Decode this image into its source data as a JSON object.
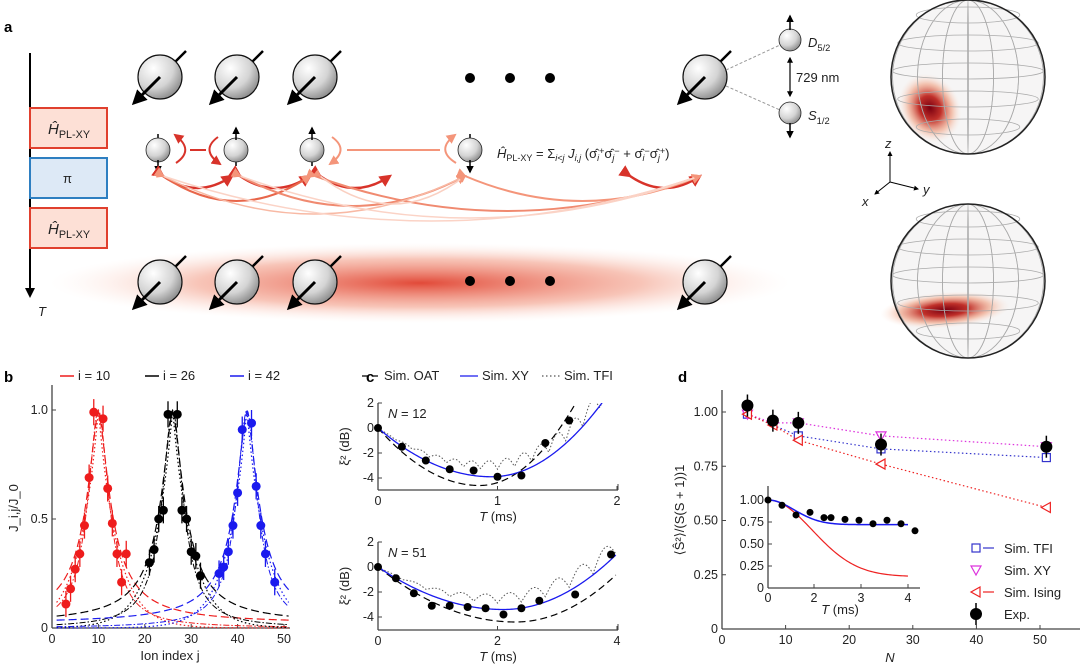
{
  "panel_labels": {
    "a": "a",
    "b": "b",
    "c": "c",
    "d": "d"
  },
  "panel_a": {
    "time_axis_label": "T",
    "sequence": [
      {
        "label": "Ĥ",
        "sub": "PL-XY",
        "color": "#e0402e",
        "fill": "#fde0d6"
      },
      {
        "label": "π",
        "sub": "",
        "color": "#2e7fc1",
        "fill": "#dde9f6"
      },
      {
        "label": "Ĥ",
        "sub": "PL-XY",
        "color": "#e0402e",
        "fill": "#fde0d6"
      }
    ],
    "formula": [
      {
        "t": "Ĥ",
        "k": "it"
      },
      {
        "t": "PL-XY",
        "k": "sub"
      },
      {
        "t": " = Σ",
        "k": ""
      },
      {
        "t": "i<j",
        "k": "subit"
      },
      {
        "t": " J",
        "k": "it"
      },
      {
        "t": "i,j",
        "k": "subit"
      },
      {
        "t": " (σ̂",
        "k": ""
      },
      {
        "t": "i",
        "k": "subit"
      },
      {
        "t": "+",
        "k": "sup"
      },
      {
        "t": "σ̂",
        "k": ""
      },
      {
        "t": "j",
        "k": "subit"
      },
      {
        "t": "−",
        "k": "sup"
      },
      {
        "t": " + σ̂",
        "k": ""
      },
      {
        "t": "i",
        "k": "subit"
      },
      {
        "t": "−",
        "k": "sup"
      },
      {
        "t": "σ̂",
        "k": ""
      },
      {
        "t": "j",
        "k": "subit"
      },
      {
        "t": "+",
        "k": "sup"
      },
      {
        "t": ")",
        "k": ""
      }
    ],
    "levels": {
      "upper": "D",
      "upper_sub": "5/2",
      "lower": "S",
      "lower_sub": "1/2",
      "wavelength": "729 nm"
    },
    "axes": {
      "x": "x",
      "y": "y",
      "z": "z"
    },
    "glow_color": "#e0402e"
  },
  "chart_data": [
    {
      "id": "b",
      "type": "scatter",
      "xlabel": "Ion index j",
      "ylabel": "J_i,j/J_0",
      "xlim": [
        0,
        52
      ],
      "ylim": [
        0,
        1.1
      ],
      "xticks": [
        0,
        10,
        20,
        30,
        40,
        50
      ],
      "yticks": [
        0,
        0.5,
        1.0
      ],
      "ytick_labels": [
        "0",
        "0.5",
        "1.0"
      ],
      "series": [
        {
          "name": "i = 10",
          "i": 10,
          "color": "#ee1c1c",
          "x": [
            3,
            4,
            5,
            6,
            7,
            8,
            9,
            11,
            12,
            13,
            14,
            15,
            16
          ],
          "y": [
            0.11,
            0.18,
            0.27,
            0.34,
            0.47,
            0.69,
            0.99,
            0.96,
            0.64,
            0.48,
            0.34,
            0.21,
            0.34
          ]
        },
        {
          "name": "i = 26",
          "i": 26,
          "color": "#000000",
          "x": [
            21,
            22,
            23,
            24,
            25,
            27,
            28,
            29,
            30,
            31,
            32
          ],
          "y": [
            0.3,
            0.36,
            0.5,
            0.54,
            0.98,
            0.98,
            0.54,
            0.5,
            0.35,
            0.33,
            0.24
          ]
        },
        {
          "name": "i = 42",
          "i": 42,
          "color": "#1a1aee",
          "x": [
            36,
            37,
            38,
            39,
            40,
            41,
            43,
            44,
            45,
            46,
            48
          ],
          "y": [
            0.25,
            0.28,
            0.35,
            0.47,
            0.62,
            0.91,
            0.94,
            0.65,
            0.47,
            0.34,
            0.21
          ]
        }
      ]
    },
    {
      "id": "c",
      "type": "line",
      "legend": [
        {
          "name": "Sim. OAT",
          "style": "dashed",
          "color": "#000000"
        },
        {
          "name": "Sim. XY",
          "style": "solid",
          "color": "#1a1aee"
        },
        {
          "name": "Sim. TFI",
          "style": "dotted",
          "color": "#555555"
        }
      ],
      "subplots": [
        {
          "annotation_var": "N",
          "annotation_val": " = 12",
          "xlabel_var": "T",
          "xlabel_unit": " (ms)",
          "ylabel": "ξ² (dB)",
          "xlim": [
            0,
            2
          ],
          "ylim": [
            -5,
            2
          ],
          "xticks": [
            0,
            1,
            2
          ],
          "yticks": [
            -4,
            -2,
            0,
            2
          ],
          "xy_min": [
            0.95,
            -3.9
          ],
          "oat_min": [
            0.85,
            -4.6
          ],
          "exp_x": [
            0,
            0.2,
            0.4,
            0.6,
            0.8,
            1.0,
            1.2,
            1.4,
            1.6
          ],
          "exp_y": [
            0,
            -1.5,
            -2.6,
            -3.3,
            -3.4,
            -3.9,
            -3.8,
            -1.2,
            0.6
          ]
        },
        {
          "annotation_var": "N",
          "annotation_val": " = 51",
          "xlabel_var": "T",
          "xlabel_unit": " (ms)",
          "ylabel": "ξ² (dB)",
          "xlim": [
            0,
            4
          ],
          "ylim": [
            -5,
            2
          ],
          "xticks": [
            0,
            2,
            4
          ],
          "yticks": [
            -4,
            -2,
            0,
            2
          ],
          "xy_min": [
            2.1,
            -3.4
          ],
          "oat_min": [
            2.3,
            -4.4
          ],
          "exp_x": [
            0,
            0.3,
            0.6,
            0.9,
            1.2,
            1.5,
            1.8,
            2.1,
            2.4,
            2.7,
            3.3,
            3.9
          ],
          "exp_y": [
            0,
            -0.9,
            -2.1,
            -3.1,
            -3.1,
            -3.2,
            -3.3,
            -3.8,
            -3.3,
            -2.7,
            -2.2,
            1.0
          ]
        }
      ]
    },
    {
      "id": "d",
      "type": "scatter",
      "xlabel": "N",
      "ylabel": "⟨Ŝ²⟩/(S(S + 1))1",
      "xlim": [
        0,
        55
      ],
      "ylim": [
        0,
        1.1
      ],
      "xticks": [
        0,
        10,
        20,
        30,
        40,
        50
      ],
      "yticks": [
        0,
        0.25,
        0.5,
        0.75,
        1.0
      ],
      "ytick_labels": [
        "0",
        "0.25",
        "0.50",
        "0.75",
        "1.00"
      ],
      "series": [
        {
          "name": "Sim. TFI",
          "marker": "square",
          "color": "#3333cc",
          "x": [
            4,
            12,
            25,
            51
          ],
          "y": [
            0.99,
            0.89,
            0.83,
            0.79
          ]
        },
        {
          "name": "Sim. XY",
          "marker": "triangle-down",
          "color": "#dd33dd",
          "x": [
            4,
            8,
            12,
            25,
            51
          ],
          "y": [
            0.99,
            0.95,
            0.95,
            0.89,
            0.84
          ]
        },
        {
          "name": "Sim. Ising",
          "marker": "triangle-left",
          "color": "#ee2222",
          "x": [
            4,
            8,
            12,
            25,
            51
          ],
          "y": [
            0.99,
            0.94,
            0.87,
            0.76,
            0.56
          ]
        },
        {
          "name": "Exp.",
          "marker": "circle",
          "color": "#000000",
          "x": [
            4,
            8,
            12,
            25,
            51
          ],
          "y": [
            1.03,
            0.96,
            0.95,
            0.85,
            0.84
          ]
        }
      ],
      "inset": {
        "xlabel_var": "T",
        "xlabel_unit": " (ms)",
        "xticks": [
          0,
          2,
          3,
          4
        ],
        "yticks": [
          0,
          0.25,
          0.5,
          0.75,
          1.0
        ],
        "ytick_labels": [
          "0",
          "0.25",
          "0.50",
          "0.75",
          "1.00"
        ],
        "xlim": [
          0,
          4.3
        ],
        "ylim": [
          0,
          1.05
        ],
        "exp_x": [
          0,
          0.4,
          0.8,
          1.2,
          1.6,
          1.8,
          2.2,
          2.6,
          3.0,
          3.4,
          3.8,
          4.2
        ],
        "exp_y": [
          1.0,
          0.94,
          0.83,
          0.86,
          0.8,
          0.8,
          0.78,
          0.77,
          0.73,
          0.77,
          0.73,
          0.65
        ],
        "xy_plateau": 0.72,
        "ising_final": 0.13
      }
    }
  ]
}
